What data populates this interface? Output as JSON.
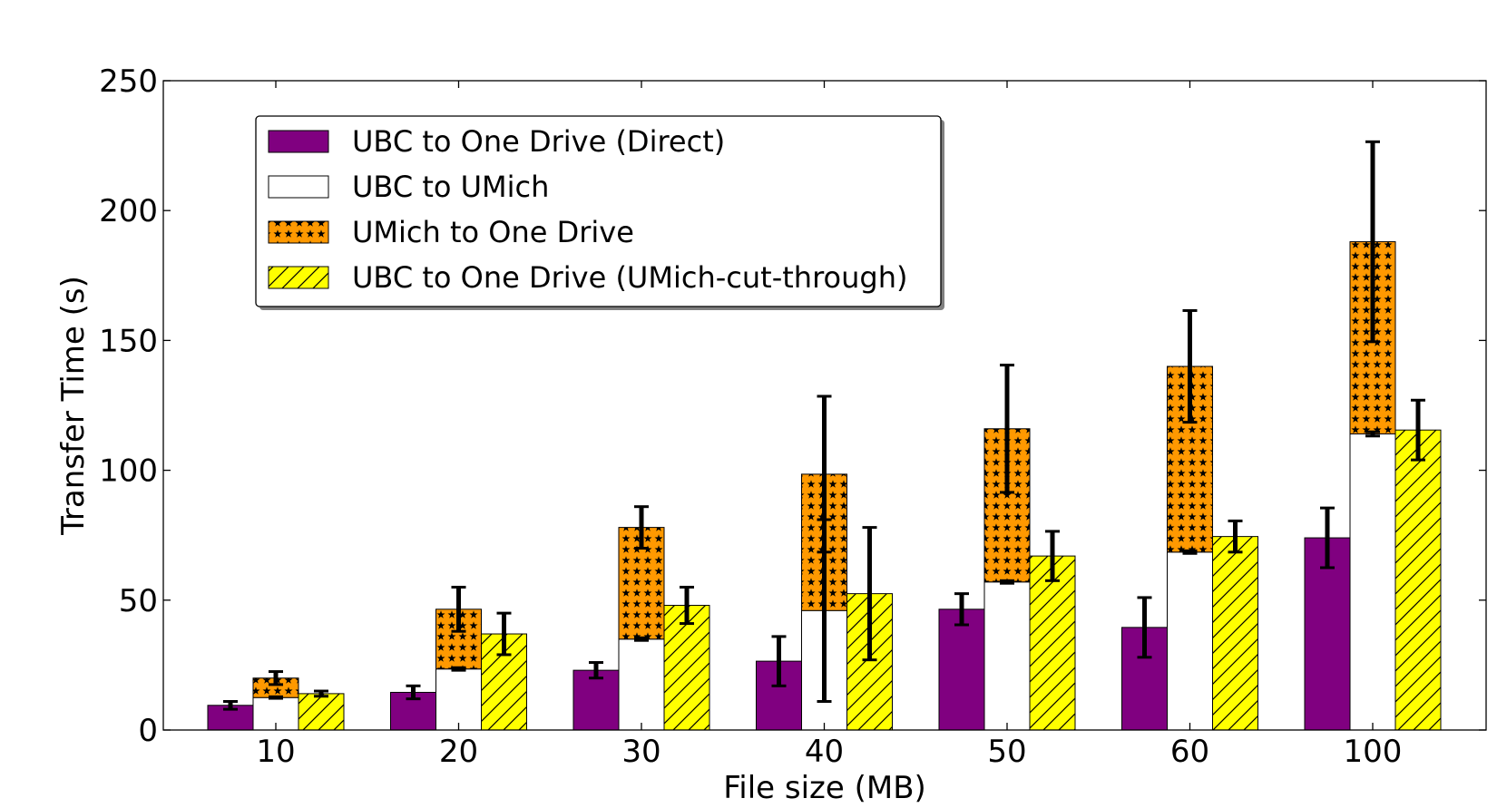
{
  "chart_data": {
    "type": "bar",
    "xlabel": "File size (MB)",
    "ylabel": "Transfer Time (s)",
    "ylim": [
      0,
      250
    ],
    "yticks": [
      "0",
      "50",
      "100",
      "150",
      "200",
      "250"
    ],
    "categories": [
      "10",
      "20",
      "30",
      "40",
      "50",
      "60",
      "100"
    ],
    "grid": false,
    "legend_position": "top-left",
    "series": [
      {
        "name": "UBC to One Drive (Direct)",
        "color": "#800080",
        "pattern": "solid",
        "values": [
          9.5,
          14.5,
          23,
          26.5,
          46.5,
          39.5,
          74
        ],
        "errors": [
          1.5,
          2.5,
          3,
          9.5,
          6,
          11.5,
          11.5
        ]
      },
      {
        "name": "UBC to UMich",
        "color": "#ffffff",
        "pattern": "solid",
        "values": [
          12.5,
          23.5,
          35,
          46,
          57,
          68.5,
          114
        ],
        "errors": [
          0.3,
          0.5,
          0.5,
          35,
          0.5,
          0.5,
          0.8
        ]
      },
      {
        "name": "UMich to One Drive",
        "color": "#ff9900",
        "pattern": "stars",
        "stacked_on": "UBC to UMich",
        "values": [
          7.5,
          23,
          43,
          52.5,
          59,
          71.5,
          74
        ],
        "errors": [
          2.5,
          8.5,
          8,
          30,
          24.5,
          21.5,
          38.5
        ]
      },
      {
        "name": "UBC to One Drive (UMich-cut-through)",
        "color": "#ffff00",
        "pattern": "hatch",
        "values": [
          14,
          37,
          48,
          52.5,
          67,
          74.5,
          115.5
        ],
        "errors": [
          1,
          8,
          7,
          25.5,
          9.5,
          6,
          11.5
        ]
      }
    ]
  }
}
